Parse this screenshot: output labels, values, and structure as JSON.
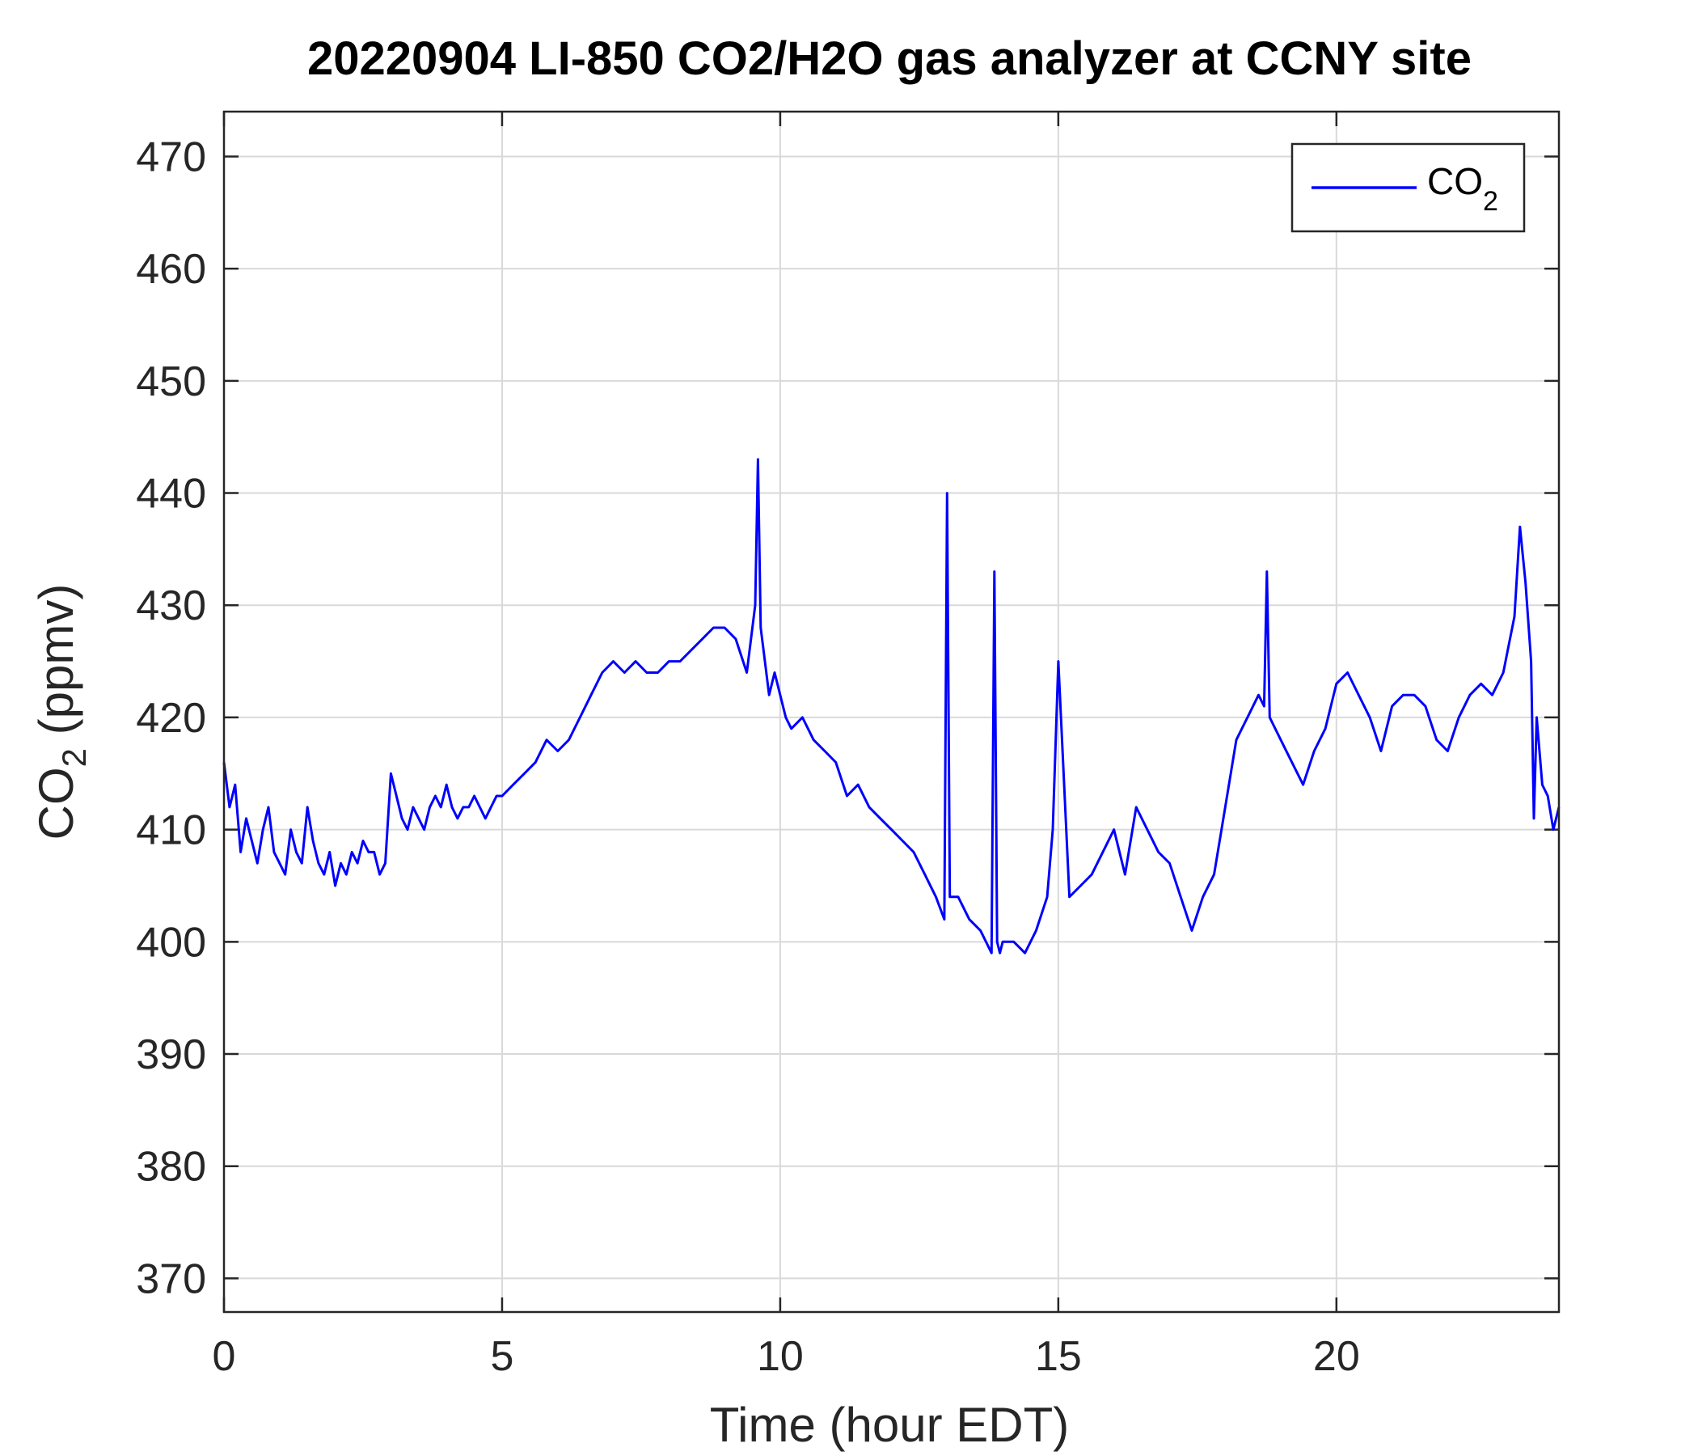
{
  "chart_data": {
    "type": "line",
    "title": "20220904 LI-850 CO2/H2O gas analyzer at CCNY site",
    "xlabel": "Time (hour EDT)",
    "ylabel": {
      "base": "CO",
      "sub": "2",
      "rest": " (ppmv)"
    },
    "xlim": [
      0,
      24
    ],
    "ylim": [
      367,
      474
    ],
    "xticks": [
      0,
      5,
      10,
      15,
      20
    ],
    "yticks": [
      370,
      380,
      390,
      400,
      410,
      420,
      430,
      440,
      450,
      460,
      470
    ],
    "grid": true,
    "legend_position": "top-right",
    "legend": {
      "base": "CO",
      "sub": "2"
    },
    "series": [
      {
        "color": "#0000ff",
        "x": [
          0.0,
          0.1,
          0.2,
          0.3,
          0.4,
          0.5,
          0.6,
          0.7,
          0.8,
          0.9,
          1.0,
          1.1,
          1.2,
          1.3,
          1.4,
          1.5,
          1.6,
          1.7,
          1.8,
          1.9,
          2.0,
          2.1,
          2.2,
          2.3,
          2.4,
          2.5,
          2.6,
          2.7,
          2.8,
          2.9,
          3.0,
          3.1,
          3.2,
          3.3,
          3.4,
          3.5,
          3.6,
          3.7,
          3.8,
          3.9,
          4.0,
          4.1,
          4.2,
          4.3,
          4.4,
          4.5,
          4.6,
          4.7,
          4.8,
          4.9,
          5.0,
          5.2,
          5.4,
          5.6,
          5.8,
          6.0,
          6.2,
          6.4,
          6.6,
          6.8,
          7.0,
          7.2,
          7.4,
          7.6,
          7.8,
          8.0,
          8.2,
          8.4,
          8.6,
          8.8,
          9.0,
          9.2,
          9.4,
          9.55,
          9.6,
          9.65,
          9.8,
          9.9,
          10.0,
          10.1,
          10.2,
          10.4,
          10.6,
          10.8,
          11.0,
          11.2,
          11.4,
          11.6,
          11.8,
          12.0,
          12.2,
          12.4,
          12.6,
          12.8,
          12.95,
          13.0,
          13.05,
          13.2,
          13.4,
          13.6,
          13.8,
          13.85,
          13.9,
          13.95,
          14.0,
          14.2,
          14.4,
          14.6,
          14.8,
          14.9,
          15.0,
          15.2,
          15.4,
          15.6,
          15.8,
          16.0,
          16.2,
          16.4,
          16.6,
          16.8,
          17.0,
          17.2,
          17.4,
          17.6,
          17.8,
          18.0,
          18.2,
          18.4,
          18.6,
          18.7,
          18.75,
          18.8,
          19.0,
          19.2,
          19.4,
          19.6,
          19.8,
          20.0,
          20.2,
          20.4,
          20.6,
          20.8,
          21.0,
          21.2,
          21.4,
          21.6,
          21.8,
          22.0,
          22.2,
          22.4,
          22.6,
          22.8,
          23.0,
          23.2,
          23.3,
          23.4,
          23.5,
          23.55,
          23.6,
          23.7,
          23.8,
          23.9,
          24.0
        ],
        "y": [
          416,
          412,
          414,
          408,
          411,
          409,
          407,
          410,
          412,
          408,
          407,
          406,
          410,
          408,
          407,
          412,
          409,
          407,
          406,
          408,
          405,
          407,
          406,
          408,
          407,
          409,
          408,
          408,
          406,
          407,
          415,
          413,
          411,
          410,
          412,
          411,
          410,
          412,
          413,
          412,
          414,
          412,
          411,
          412,
          412,
          413,
          412,
          411,
          412,
          413,
          413,
          414,
          415,
          416,
          418,
          417,
          418,
          420,
          422,
          424,
          425,
          424,
          425,
          424,
          424,
          425,
          425,
          426,
          427,
          428,
          428,
          427,
          424,
          430,
          443,
          428,
          422,
          424,
          422,
          420,
          419,
          420,
          418,
          417,
          416,
          413,
          414,
          412,
          411,
          410,
          409,
          408,
          406,
          404,
          402,
          440,
          404,
          404,
          402,
          401,
          399,
          433,
          400,
          399,
          400,
          400,
          399,
          401,
          404,
          410,
          425,
          404,
          405,
          406,
          408,
          410,
          406,
          412,
          410,
          408,
          407,
          404,
          401,
          404,
          406,
          412,
          418,
          420,
          422,
          421,
          433,
          420,
          418,
          416,
          414,
          417,
          419,
          423,
          424,
          422,
          420,
          417,
          421,
          422,
          422,
          421,
          418,
          417,
          420,
          422,
          423,
          422,
          424,
          429,
          437,
          432,
          425,
          411,
          420,
          414,
          413,
          410,
          412
        ]
      }
    ]
  }
}
